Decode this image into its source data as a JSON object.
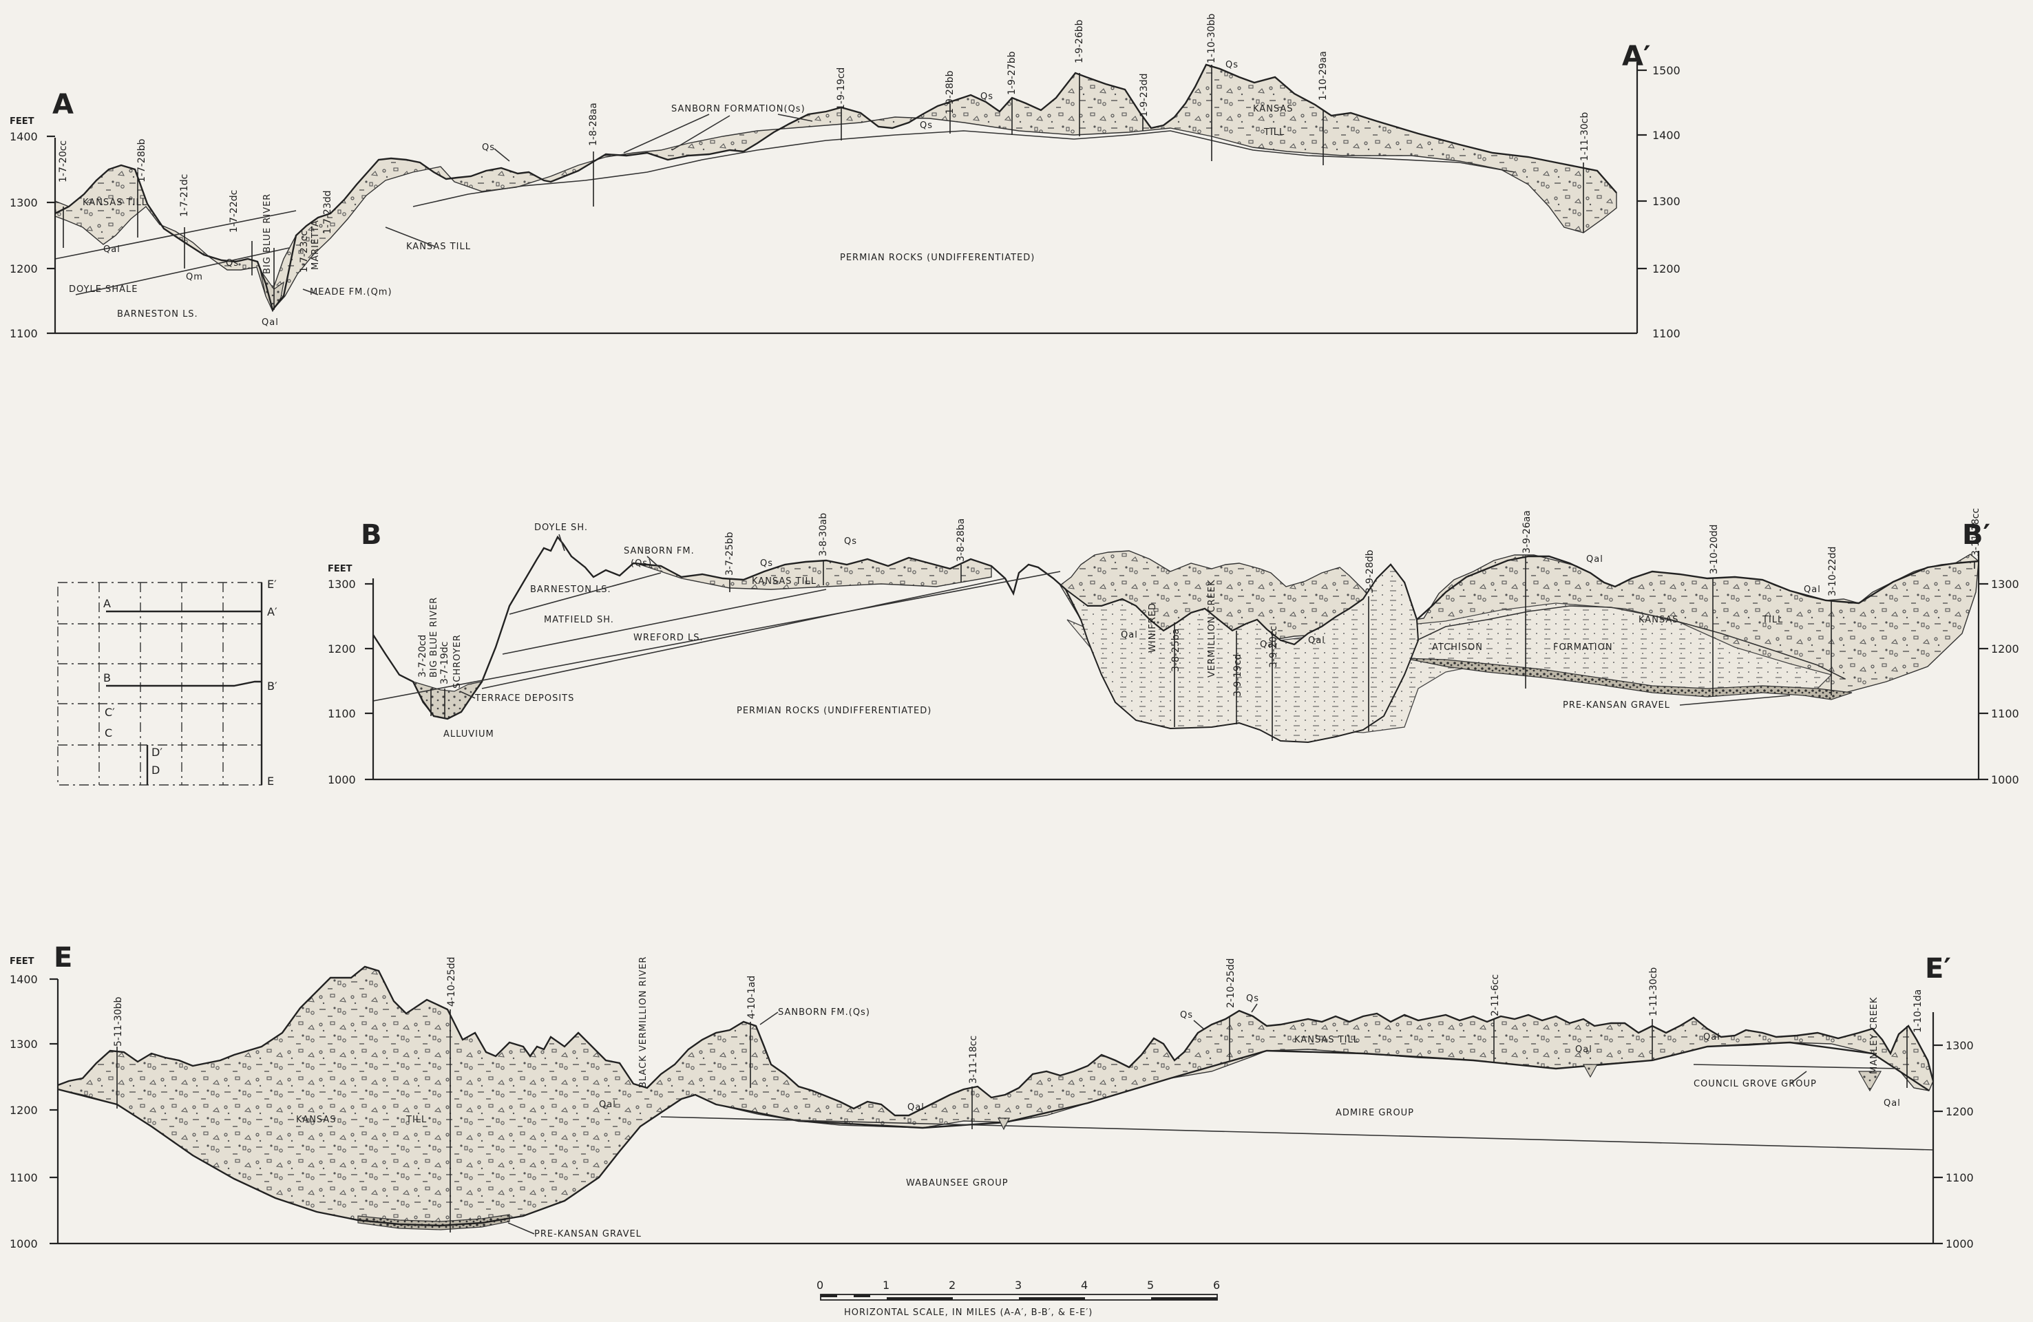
{
  "units_label": "FEET",
  "sections": {
    "a": {
      "left_letter": "A",
      "right_letter": "A′",
      "left_ticks": [
        "1400",
        "1300",
        "1200",
        "1100"
      ],
      "right_ticks": [
        "1500",
        "1400",
        "1300",
        "1200",
        "1100"
      ],
      "labels": {
        "kansas_till_left": "KANSAS TILL",
        "qal_1": "Qal",
        "qm": "Qm",
        "qs_1": "Qs",
        "doyle_shale": "DOYLE SHALE",
        "barneston": "BARNESTON LS.",
        "big_blue_river": "BIG BLUE RIVER",
        "marietta": "MARIETTA",
        "meade": "MEADE FM.(Qm)",
        "qal_2": "Qal",
        "kansas_till_mid": "KANSAS TILL",
        "qs_2": "Qs",
        "sanborn": "SANBORN FORMATION(Qs)",
        "permian": "PERMIAN ROCKS (UNDIFFERENTIATED)",
        "qs_3": "Qs",
        "qs_4": "Qs",
        "qs_5": "Qs",
        "kansas_till_right_1": "KANSAS",
        "kansas_till_right_2": "TILL"
      },
      "wells": [
        "1-7-20cc",
        "1-7-28bb",
        "1-7-21dc",
        "1-7-22dc",
        "1-7-23cc",
        "1-7-23dd",
        "1-8-28aa",
        "1-9-19cd",
        "1-9-28bb",
        "1-9-27bb",
        "1-9-26bb",
        "1-9-23dd",
        "1-10-30bb",
        "1-10-29aa",
        "1-11-30cb"
      ]
    },
    "b": {
      "left_letter": "B",
      "right_letter": "B′",
      "left_ticks": [
        "1300",
        "1200",
        "1100",
        "1000"
      ],
      "right_ticks": [
        "1300",
        "1200",
        "1100",
        "1000"
      ],
      "labels": {
        "doyle_sh": "DOYLE SH.",
        "sanborn_fm": "SANBORN FM.",
        "qs_paren": "(Qs)",
        "barneston": "BARNESTON LS.",
        "matfield": "MATFIELD SH.",
        "wreford": "WREFORD LS.",
        "kansas_till": "KANSAS TILL",
        "qs_1": "Qs",
        "qs_2": "Qs",
        "schroyer": "SCHROYER",
        "blue_river": "BIG BLUE RIVER",
        "terrace": "TERRACE DEPOSITS",
        "alluvium": "ALLUVIUM",
        "permian": "PERMIAN ROCKS (UNDIFFERENTIATED)",
        "winifred": "WINIFRED",
        "vermillion": "VERMILLION CREEK",
        "qal_1": "Qal",
        "qal_2": "Qal",
        "qal_3": "Qal",
        "qal_4": "Qal",
        "qal_5": "Qal",
        "atchison_1": "ATCHISON",
        "atchison_2": "FORMATION",
        "kansas_1": "KANSAS",
        "kansas_2": "TILL",
        "pre_kansan": "PRE-KANSAN GRAVEL"
      },
      "wells": [
        "3-7-20cd",
        "3-7-19dc",
        "3-7-25bb",
        "3-8-30ab",
        "3-8-28ba",
        "3-8-25ba",
        "3-9-19cd",
        "3-9-20cc",
        "3-9-28db",
        "3-9-26aa",
        "3-10-20dd",
        "3-10-22dd",
        "3-11-18cc"
      ]
    },
    "e": {
      "left_letter": "E",
      "right_letter": "E′",
      "left_ticks": [
        "1400",
        "1300",
        "1200",
        "1100",
        "1000"
      ],
      "right_ticks": [
        "1300",
        "1200",
        "1100",
        "1000"
      ],
      "labels": {
        "kansas_till_1": "KANSAS",
        "kansas_till_2": "TILL",
        "black_vermillion": "BLACK VERMILLION RIVER",
        "sanborn": "SANBORN FM.(Qs)",
        "qal_1": "Qal",
        "qal_2": "Qal",
        "qal_3": "Qal",
        "qal_4": "Qal",
        "qal_5": "Qal",
        "qs_1": "Qs",
        "qs_2": "Qs",
        "kansas_till_right": "KANSAS TILL",
        "admire": "ADMIRE GROUP",
        "council_grove": "COUNCIL GROVE GROUP",
        "manley": "MANLEY CREEK",
        "wabaunsee": "WABAUNSEE GROUP",
        "pre_kansan": "PRE-KANSAN GRAVEL"
      },
      "wells": [
        "5-11-30bb",
        "4-10-25dd",
        "4-10-1ad",
        "3-11-18cc",
        "2-10-25dd",
        "2-11-6cc",
        "1-11-30cb",
        "1-10-1da"
      ]
    }
  },
  "index_map": {
    "right_labels": [
      "E′",
      "A′",
      "B′",
      "E"
    ],
    "left_labels": [
      "A",
      "B",
      "C′",
      "C",
      "D′",
      "D"
    ]
  },
  "scale": {
    "ticks": [
      "0",
      "1",
      "2",
      "3",
      "4",
      "5",
      "6"
    ],
    "caption": "HORIZONTAL SCALE, IN MILES (A-A′, B-B′, & E-E′)"
  },
  "colors": {
    "ink": "#222222",
    "paper": "#f3f1ec",
    "till": "#e4dfd3",
    "alluvium": "#d4cfc2",
    "atchison": "#ece8df"
  }
}
